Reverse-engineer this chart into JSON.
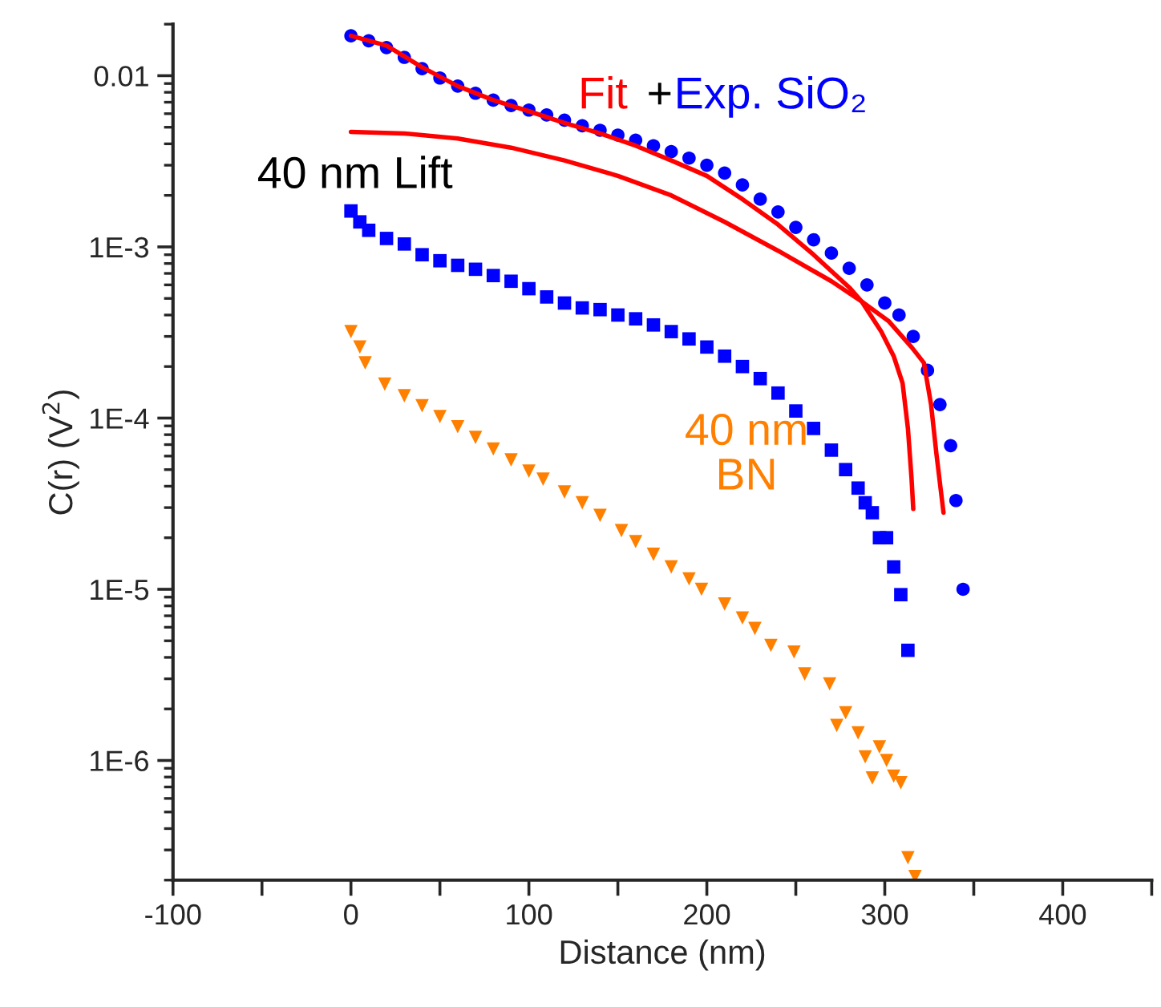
{
  "chart_data": {
    "type": "scatter",
    "xlabel": "Distance (nm)",
    "ylabel": "C(r) (V$^{2}$)",
    "log": "y",
    "grid": false,
    "legend": false,
    "xlim": [
      -100,
      450
    ],
    "xticks": [
      -100,
      {
        "value": -50,
        "label": null
      },
      0,
      {
        "value": 50,
        "label": null
      },
      100,
      {
        "value": 150,
        "label": null
      },
      200,
      {
        "value": 250,
        "label": null
      },
      300,
      {
        "value": 350,
        "label": null
      },
      400,
      {
        "value": 450,
        "label": null
      }
    ],
    "ylim": [
      2e-07,
      0.02
    ],
    "yticks": [
      {
        "value": 1e-06,
        "label": "1E-6"
      },
      {
        "value": 1e-05,
        "label": "1E-5"
      },
      {
        "value": 0.0001,
        "label": "1E-4"
      },
      {
        "value": 0.001,
        "label": "1E-3"
      },
      0.01
    ],
    "annotations": [
      "+",
      "40 nm Lift"
    ],
    "series": [
      {
        "name": "Exp. SiO₂",
        "type": "scatter",
        "marker": "circle",
        "color": "#0000ff",
        "x": [
          0,
          10,
          20,
          30,
          40,
          50,
          60,
          70,
          80,
          90,
          100,
          110,
          120,
          130,
          140,
          150,
          160,
          170,
          180,
          190,
          200,
          210,
          220,
          230,
          240,
          250,
          260,
          270,
          280,
          290,
          300,
          308,
          316,
          324,
          331,
          337,
          340,
          344
        ],
        "values": [
          0.0171,
          0.016,
          0.0146,
          0.0128,
          0.011,
          0.0097,
          0.0087,
          0.0079,
          0.0072,
          0.0067,
          0.0063,
          0.0059,
          0.0055,
          0.0051,
          0.0048,
          0.0045,
          0.0042,
          0.0039,
          0.0036,
          0.0033,
          0.003,
          0.0027,
          0.0023,
          0.0019,
          0.0016,
          0.0013,
          0.0011,
          0.00092,
          0.00075,
          0.0006,
          0.00047,
          0.0004,
          0.0003,
          0.00019,
          0.00012,
          6.9e-05,
          3.3e-05,
          1e-05
        ]
      },
      {
        "type": "scatter",
        "marker": "square",
        "color": "#0000ff",
        "x": [
          0,
          5,
          10,
          20,
          30,
          40,
          50,
          60,
          70,
          80,
          90,
          100,
          110,
          120,
          130,
          140,
          150,
          160,
          170,
          180,
          190,
          200,
          210,
          220,
          230,
          240,
          250,
          260,
          270,
          278,
          285,
          289,
          293,
          297,
          301,
          305,
          309,
          313
        ],
        "values": [
          0.00162,
          0.0014,
          0.00125,
          0.00112,
          0.00104,
          0.0009,
          0.00083,
          0.00078,
          0.00074,
          0.00068,
          0.00063,
          0.00057,
          0.00051,
          0.00047,
          0.00044,
          0.00043,
          0.0004,
          0.00038,
          0.00035,
          0.00032,
          0.00029,
          0.00026,
          0.00023,
          0.0002,
          0.00017,
          0.00014,
          0.00011,
          8.7e-05,
          6.5e-05,
          5e-05,
          3.9e-05,
          3.2e-05,
          2.8e-05,
          2e-05,
          2e-05,
          1.35e-05,
          9.3e-06,
          4.4e-06
        ]
      },
      {
        "name": "40 nm\nBN",
        "type": "scatter",
        "marker": "triangle",
        "color": "#ff8000",
        "x": [
          0,
          5,
          8,
          19,
          30,
          40,
          50,
          60,
          70,
          80,
          90,
          100,
          108,
          120,
          130,
          140,
          152,
          160,
          170,
          180,
          190,
          197,
          210,
          220,
          227,
          236,
          249,
          255,
          269,
          273,
          278,
          285,
          289,
          293,
          297,
          301,
          305,
          309,
          313,
          317
        ],
        "values": [
          0.00032,
          0.00026,
          0.00021,
          0.000158,
          0.000135,
          0.000118,
          0.000102,
          8.9e-05,
          7.7e-05,
          6.6e-05,
          5.7e-05,
          4.9e-05,
          4.4e-05,
          3.7e-05,
          3.2e-05,
          2.7e-05,
          2.2e-05,
          1.9e-05,
          1.6e-05,
          1.35e-05,
          1.15e-05,
          1e-05,
          8.2e-06,
          6.8e-06,
          5.9e-06,
          4.7e-06,
          4.3e-06,
          3.2e-06,
          2.8e-06,
          1.6e-06,
          1.9e-06,
          1.45e-06,
          1.05e-06,
          7.9e-07,
          1.2e-06,
          1e-06,
          8.1e-07,
          7.4e-07,
          2.7e-07,
          2.1e-07
        ]
      },
      {
        "name": "Fit",
        "type": "line",
        "line_style": "solid",
        "color": "#ff0000",
        "x": [
          0,
          20,
          40,
          60,
          80,
          100,
          120,
          140,
          160,
          180,
          200,
          220,
          240,
          260,
          280,
          287,
          290,
          298,
          305,
          310,
          313,
          315,
          316
        ],
        "values": [
          0.0171,
          0.015,
          0.0112,
          0.0087,
          0.0072,
          0.0062,
          0.0053,
          0.0046,
          0.0039,
          0.0032,
          0.0026,
          0.0019,
          0.00135,
          0.0009,
          0.00058,
          0.00048,
          0.00043,
          0.00032,
          0.00023,
          0.00016,
          8.7e-05,
          4.5e-05,
          2.95e-05
        ]
      },
      {
        "type": "line",
        "line_style": "solid",
        "color": "#ff0000",
        "x": [
          0,
          30,
          60,
          90,
          120,
          150,
          180,
          210,
          240,
          270,
          287,
          302,
          315,
          322,
          326,
          329,
          333
        ],
        "values": [
          0.0047,
          0.0046,
          0.0043,
          0.0038,
          0.0032,
          0.0026,
          0.002,
          0.0014,
          0.00095,
          0.00063,
          0.00048,
          0.00037,
          0.00026,
          0.00021,
          0.00012,
          6.2e-05,
          2.8e-05
        ]
      }
    ]
  }
}
